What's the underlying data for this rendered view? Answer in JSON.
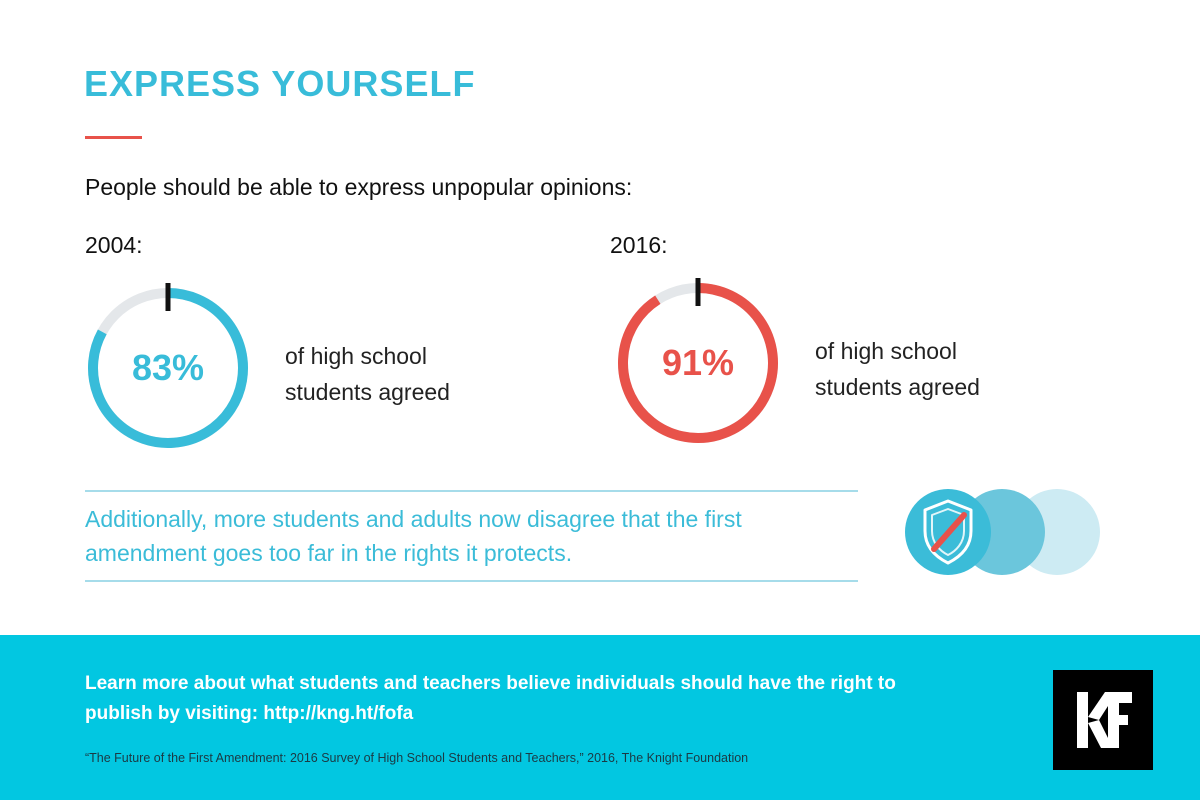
{
  "title": "EXPRESS YOURSELF",
  "subtitle": "People should be able to express unpopular opinions:",
  "stats": [
    {
      "year": "2004:",
      "value": 83,
      "value_label": "83%",
      "caption_line1": "of high school",
      "caption_line2": "students agreed",
      "color": "#38bcd9"
    },
    {
      "year": "2016:",
      "value": 91,
      "value_label": "91%",
      "caption_line1": "of high school",
      "caption_line2": "students agreed",
      "color": "#e8524a"
    }
  ],
  "note": "Additionally, more students and adults now disagree that the first amendment goes too far in the rights it protects.",
  "footer": {
    "text": "Learn more about what students and teachers believe individuals should have the right to publish by visiting: http://kng.ht/fofa",
    "citation": "“The Future of the First Amendment: 2016 Survey of High School Students and Teachers,” 2016, The Knight Foundation",
    "logo_text": "KF"
  },
  "icons": {
    "shield": "shield-icon",
    "logo": "kf-logo-icon"
  },
  "colors": {
    "accent_blue": "#38bcd9",
    "accent_red": "#e8524a",
    "ring_track": "#e4e7ea",
    "footer_bg": "#02c7e1"
  }
}
